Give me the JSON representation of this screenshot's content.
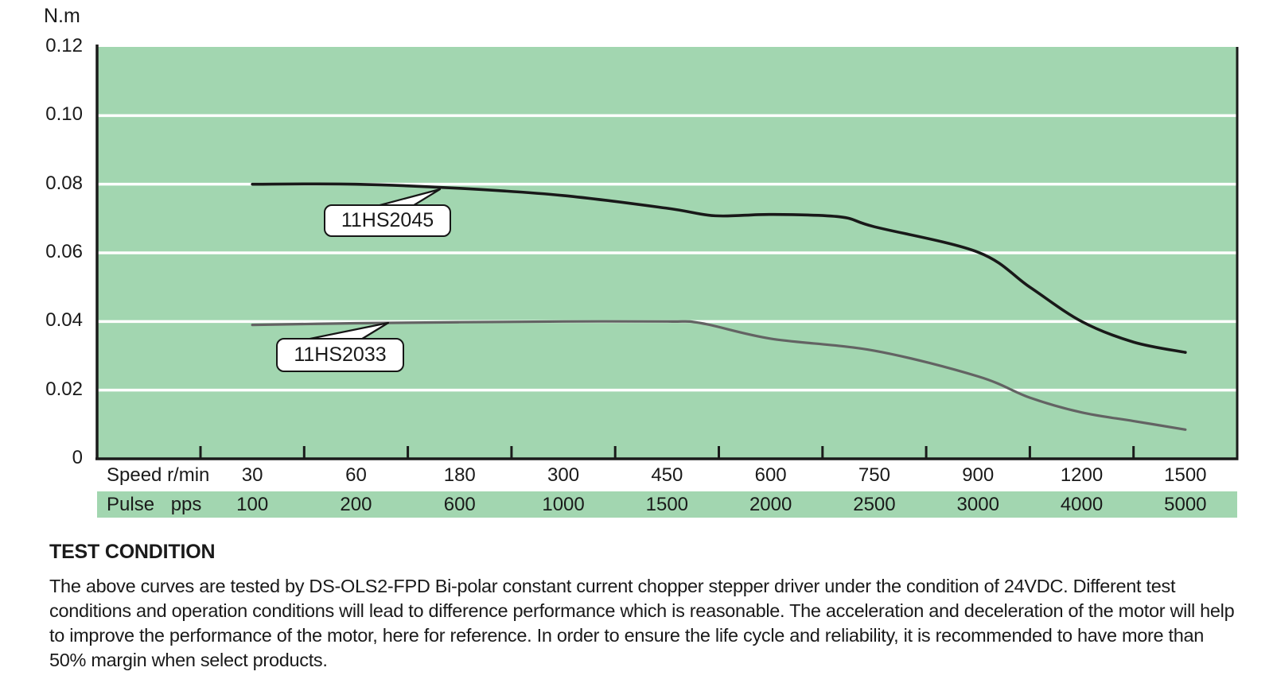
{
  "chart_data": {
    "type": "line",
    "title": "",
    "ylabel": "N.m",
    "xlabel": "",
    "ylim": [
      0,
      0.12
    ],
    "grid": true,
    "legend_position": "inline-callouts",
    "y_tick_labels": [
      "0.12",
      "0.10",
      "0.08",
      "0.06",
      "0.04",
      "0.02",
      "0"
    ],
    "y_tick_values": [
      0.12,
      0.1,
      0.08,
      0.06,
      0.04,
      0.02,
      0
    ],
    "gridline_values": [
      0.1,
      0.08,
      0.06,
      0.04,
      0.02
    ],
    "x_axis": {
      "speed_label": "Speed r/min",
      "pulse_label": "Pulse pps",
      "speed_values": [
        "30",
        "60",
        "180",
        "300",
        "450",
        "600",
        "750",
        "900",
        "1200",
        "1500"
      ],
      "pulse_values": [
        "100",
        "200",
        "600",
        "1000",
        "1500",
        "2000",
        "2500",
        "3000",
        "4000",
        "5000"
      ]
    },
    "series": [
      {
        "name": "11HS2045",
        "color": "#191919",
        "stroke_width": 3.6,
        "points": [
          [
            30,
            0.08
          ],
          [
            60,
            0.08
          ],
          [
            180,
            0.0788
          ],
          [
            300,
            0.0767
          ],
          [
            450,
            0.073
          ],
          [
            520,
            0.0708
          ],
          [
            600,
            0.0712
          ],
          [
            700,
            0.0705
          ],
          [
            750,
            0.0676
          ],
          [
            900,
            0.0602
          ],
          [
            1050,
            0.05
          ],
          [
            1200,
            0.04
          ],
          [
            1350,
            0.034
          ],
          [
            1500,
            0.031
          ]
        ]
      },
      {
        "name": "11HS2033",
        "color": "#636363",
        "stroke_width": 3.2,
        "points": [
          [
            30,
            0.039
          ],
          [
            60,
            0.0395
          ],
          [
            180,
            0.0398
          ],
          [
            300,
            0.04
          ],
          [
            450,
            0.04
          ],
          [
            500,
            0.0395
          ],
          [
            600,
            0.035
          ],
          [
            750,
            0.0315
          ],
          [
            900,
            0.024
          ],
          [
            1050,
            0.0178
          ],
          [
            1200,
            0.0135
          ],
          [
            1350,
            0.011
          ],
          [
            1500,
            0.0085
          ]
        ]
      }
    ],
    "colors": {
      "plot_bg": "#a2d6b0",
      "gridline": "#ffffff",
      "axis": "#1a1a1a",
      "callout_bg": "#ffffff",
      "text": "#1a1a1a"
    }
  },
  "notes": {
    "heading": "TEST CONDITION",
    "body": "The above curves are tested by DS-OLS2-FPD Bi-polar constant current chopper stepper driver under the condition of 24VDC. Different test conditions and operation conditions will lead to difference performance which is reasonable. The acceleration and deceleration of the motor will help to improve the performance of the motor, here for reference. In order to ensure the life cycle and reliability, it is recommended to have more than 50% margin when select products."
  }
}
